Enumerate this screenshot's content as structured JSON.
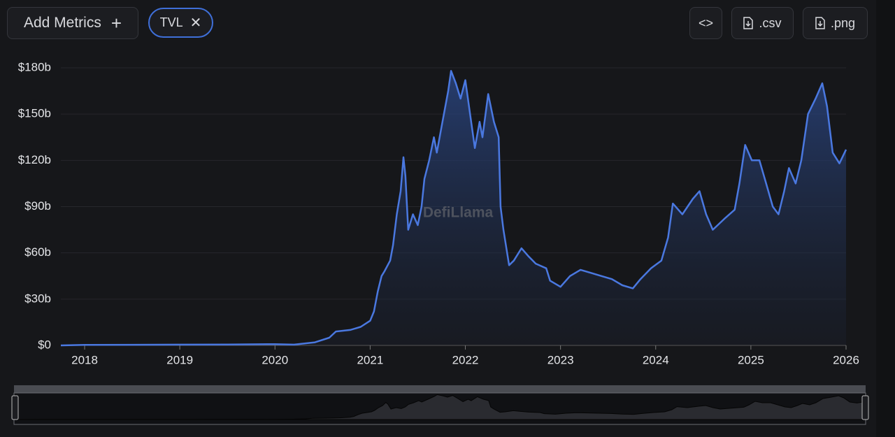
{
  "toolbar": {
    "add_metrics": "Add Metrics",
    "metric_chip": "TVL",
    "csv_button": ".csv",
    "png_button": ".png"
  },
  "chart_data": {
    "type": "line",
    "watermark": "DefiLlama",
    "series": [
      {
        "name": "TVL",
        "color": "#4a78e0",
        "x": [
          2017.75,
          2018.0,
          2018.5,
          2019.0,
          2019.5,
          2020.0,
          2020.2,
          2020.42,
          2020.57,
          2020.64,
          2020.79,
          2020.9,
          2021.0,
          2021.04,
          2021.08,
          2021.12,
          2021.15,
          2021.21,
          2021.24,
          2021.28,
          2021.32,
          2021.35,
          2021.37,
          2021.4,
          2021.45,
          2021.5,
          2021.54,
          2021.57,
          2021.62,
          2021.67,
          2021.7,
          2021.76,
          2021.82,
          2021.85,
          2021.9,
          2021.95,
          2022.0,
          2022.05,
          2022.1,
          2022.15,
          2022.18,
          2022.24,
          2022.3,
          2022.35,
          2022.37,
          2022.4,
          2022.46,
          2022.51,
          2022.59,
          2022.66,
          2022.74,
          2022.85,
          2022.89,
          2023.0,
          2023.1,
          2023.21,
          2023.32,
          2023.43,
          2023.54,
          2023.65,
          2023.76,
          2023.84,
          2023.95,
          2024.06,
          2024.13,
          2024.18,
          2024.28,
          2024.39,
          2024.46,
          2024.53,
          2024.6,
          2024.72,
          2024.83,
          2024.88,
          2024.94,
          2025.01,
          2025.09,
          2025.16,
          2025.23,
          2025.29,
          2025.35,
          2025.4,
          2025.47,
          2025.53,
          2025.6,
          2025.68,
          2025.75,
          2025.8,
          2025.86,
          2025.93,
          2026.0
        ],
        "values": [
          0,
          0.3,
          0.4,
          0.5,
          0.6,
          0.8,
          0.5,
          2,
          5,
          9,
          10,
          12,
          16,
          22,
          35,
          45,
          48,
          55,
          65,
          85,
          100,
          122,
          110,
          75,
          85,
          78,
          90,
          108,
          120,
          135,
          125,
          145,
          165,
          178,
          170,
          160,
          172,
          150,
          128,
          145,
          135,
          163,
          145,
          135,
          90,
          75,
          52,
          55,
          63,
          58,
          53,
          50,
          42,
          38,
          45,
          49,
          47,
          45,
          43,
          39,
          37,
          43,
          50,
          55,
          70,
          92,
          85,
          95,
          100,
          85,
          75,
          82,
          88,
          105,
          130,
          120,
          120,
          105,
          90,
          85,
          100,
          115,
          105,
          120,
          150,
          160,
          170,
          155,
          125,
          118,
          127
        ]
      }
    ],
    "xlim": [
      2017.75,
      2026.0
    ],
    "xticks": [
      2018,
      2019,
      2020,
      2021,
      2022,
      2023,
      2024,
      2025,
      2026
    ],
    "ylim": [
      0,
      180
    ],
    "yticks": [
      {
        "value": 0,
        "label": "$0"
      },
      {
        "value": 30,
        "label": "$30b"
      },
      {
        "value": 60,
        "label": "$60b"
      },
      {
        "value": 90,
        "label": "$90b"
      },
      {
        "value": 120,
        "label": "$120b"
      },
      {
        "value": 150,
        "label": "$150b"
      },
      {
        "value": 180,
        "label": "$180b"
      }
    ],
    "grid": true
  }
}
